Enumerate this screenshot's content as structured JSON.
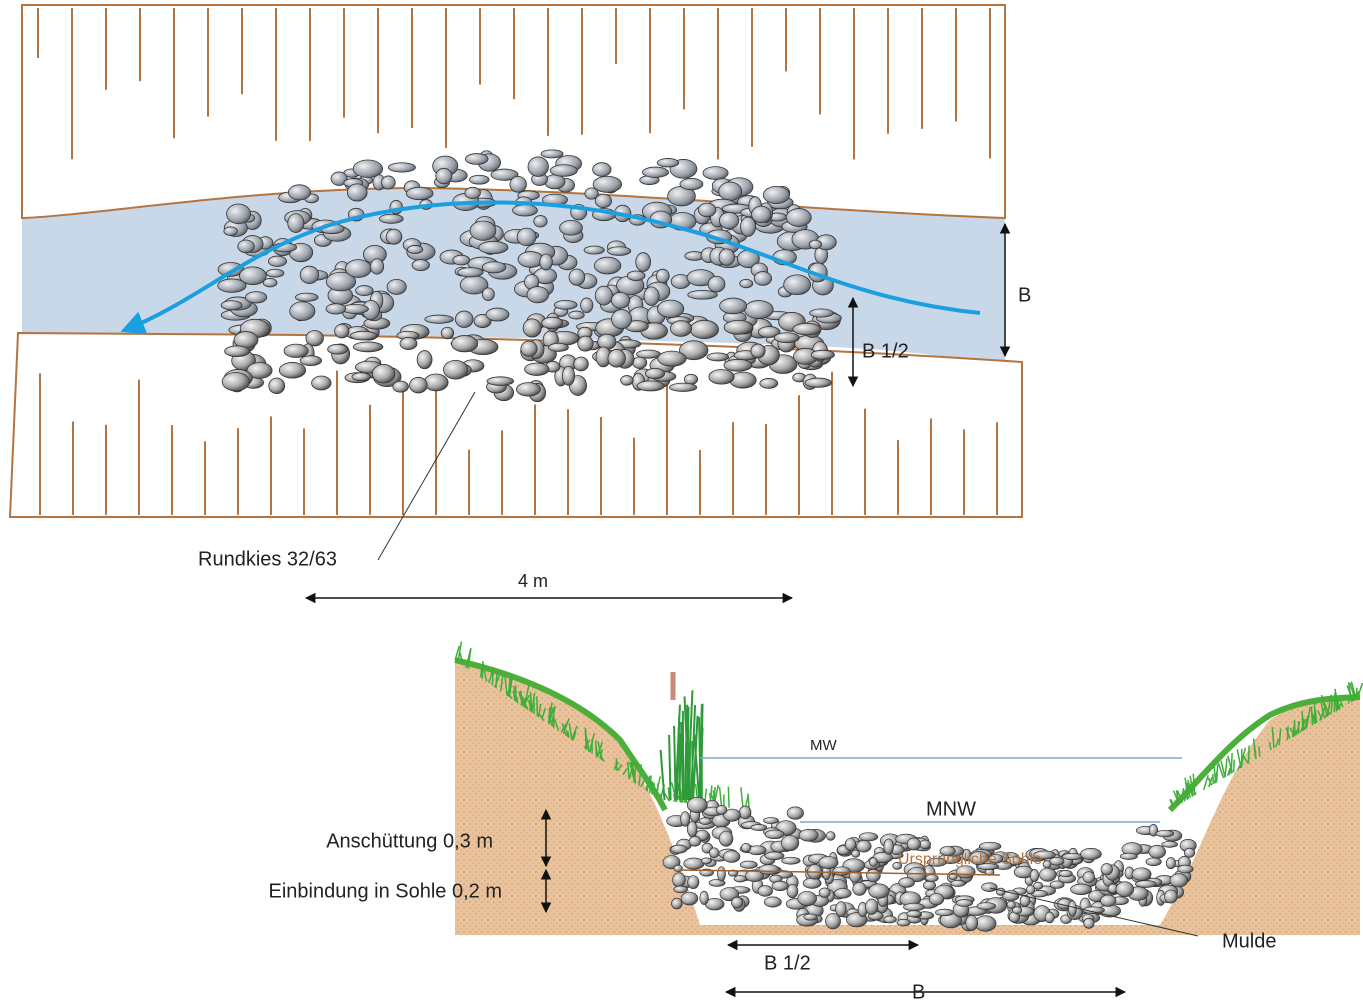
{
  "plan_view": {
    "width_label": "B",
    "half_width_label": "B 1/2",
    "material_label": "Rundkies 32/63",
    "length_label": "4 m"
  },
  "cross_section": {
    "mw_label": "MW",
    "mnw_label": "MNW",
    "original_bed_label": "Ursprüngliche Sohle",
    "fill_label": "Anschüttung 0,3 m",
    "embed_label": "Einbindung  in Sohle 0,2 m",
    "trough_label": "Mulde",
    "half_width_label": "B 1/2",
    "width_label": "B"
  }
}
